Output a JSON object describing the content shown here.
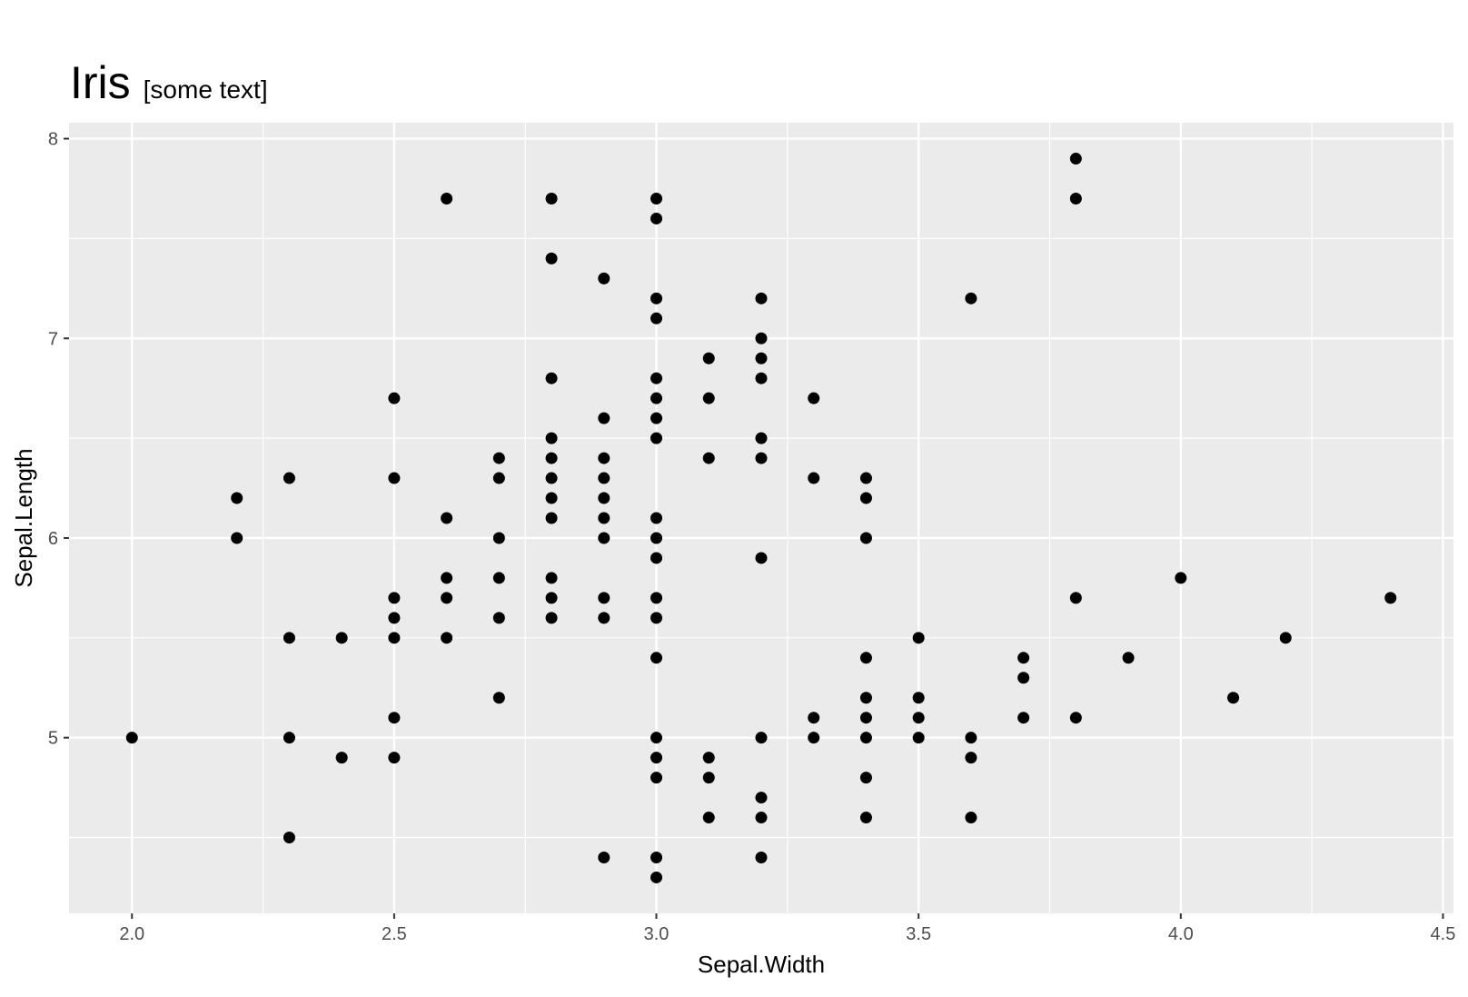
{
  "chart_data": {
    "type": "scatter",
    "title": "Iris",
    "subtitle": "[some text]",
    "x_label": "Sepal.Width",
    "y_label": "Sepal.Length",
    "x": [
      2.0,
      2.2,
      2.2,
      2.3,
      2.3,
      2.3,
      2.3,
      2.4,
      2.4,
      2.5,
      2.5,
      2.5,
      2.5,
      2.5,
      2.5,
      2.5,
      2.6,
      2.6,
      2.6,
      2.6,
      2.6,
      2.7,
      2.7,
      2.7,
      2.7,
      2.7,
      2.7,
      2.8,
      2.8,
      2.8,
      2.8,
      2.8,
      2.8,
      2.8,
      2.8,
      2.8,
      2.8,
      2.8,
      2.9,
      2.9,
      2.9,
      2.9,
      2.9,
      2.9,
      2.9,
      2.9,
      2.9,
      2.9,
      3.0,
      3.0,
      3.0,
      3.0,
      3.0,
      3.0,
      3.0,
      3.0,
      3.0,
      3.0,
      3.0,
      3.0,
      3.0,
      3.0,
      3.0,
      3.0,
      3.0,
      3.0,
      3.0,
      3.1,
      3.1,
      3.1,
      3.1,
      3.1,
      3.1,
      3.2,
      3.2,
      3.2,
      3.2,
      3.2,
      3.2,
      3.2,
      3.2,
      3.2,
      3.2,
      3.2,
      3.3,
      3.3,
      3.3,
      3.3,
      3.4,
      3.4,
      3.4,
      3.4,
      3.4,
      3.4,
      3.4,
      3.4,
      3.4,
      3.5,
      3.5,
      3.5,
      3.5,
      3.6,
      3.6,
      3.6,
      3.6,
      3.7,
      3.7,
      3.7,
      3.8,
      3.8,
      3.8,
      3.8,
      3.9,
      4.0,
      4.1,
      4.2,
      4.4
    ],
    "y": [
      5.0,
      6.2,
      6.0,
      6.3,
      5.5,
      5.0,
      4.5,
      5.5,
      4.9,
      6.7,
      6.3,
      5.7,
      5.6,
      5.5,
      5.1,
      4.9,
      7.7,
      6.1,
      5.8,
      5.7,
      5.5,
      6.4,
      6.3,
      6.0,
      5.8,
      5.6,
      5.2,
      7.7,
      7.4,
      6.8,
      6.5,
      6.4,
      6.3,
      6.2,
      6.1,
      5.8,
      5.7,
      5.6,
      7.3,
      6.6,
      6.4,
      6.3,
      6.2,
      6.1,
      6.0,
      5.7,
      5.6,
      4.4,
      7.7,
      7.6,
      7.2,
      7.1,
      6.8,
      6.7,
      6.6,
      6.5,
      6.1,
      6.0,
      5.9,
      5.7,
      5.6,
      5.4,
      5.0,
      4.9,
      4.8,
      4.4,
      4.3,
      6.9,
      6.7,
      6.4,
      4.9,
      4.8,
      4.6,
      7.2,
      7.0,
      6.9,
      6.8,
      6.5,
      6.4,
      5.9,
      5.0,
      4.7,
      4.6,
      4.4,
      6.7,
      6.3,
      5.1,
      5.0,
      6.3,
      6.2,
      6.0,
      5.4,
      5.2,
      5.1,
      5.0,
      4.8,
      4.6,
      5.5,
      5.2,
      5.1,
      5.0,
      7.2,
      5.0,
      4.9,
      4.6,
      5.4,
      5.3,
      5.1,
      7.9,
      7.7,
      5.7,
      5.1,
      5.4,
      5.8,
      5.2,
      5.5,
      5.7
    ],
    "color": "#000000",
    "xlim": [
      1.88,
      4.52
    ],
    "ylim": [
      4.12,
      8.08
    ],
    "xticks": [
      {
        "value": 2,
        "label": "2.0"
      },
      2.5,
      {
        "value": 3,
        "label": "3.0"
      },
      3.5,
      {
        "value": 4,
        "label": "4.0"
      },
      4.5
    ],
    "yticks": [
      5,
      6,
      7,
      8
    ],
    "grid": true
  }
}
